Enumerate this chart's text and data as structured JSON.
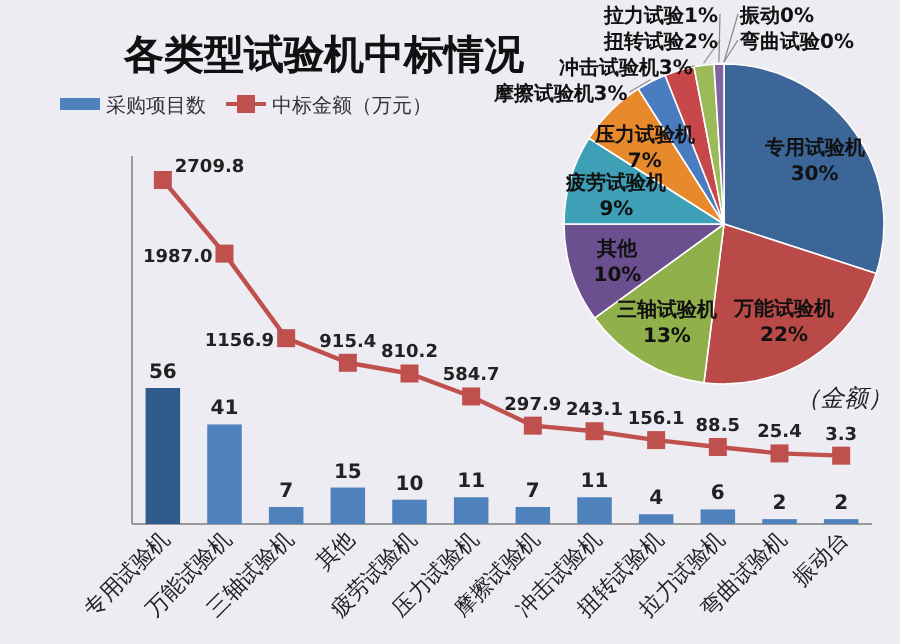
{
  "chart_data": [
    {
      "type": "bar",
      "title": "各类型试验机中标情况",
      "legend": "top left",
      "marker": "square",
      "data_labels": true,
      "categories": [
        "专用试验机",
        "万能试验机",
        "三轴试验机",
        "其他",
        "疲劳试验机",
        "压力试验机",
        "摩擦试验机",
        "冲击试验机",
        "扭转试验机",
        "拉力试验机",
        "弯曲试验机",
        "振动台"
      ],
      "series": [
        {
          "name": "采购项目数",
          "color": "#4f81bd",
          "colors": [
            "#2f5a8c",
            "#4f81bd",
            "#4f81bd",
            "#4f81bd",
            "#4f81bd",
            "#4f81bd",
            "#4f81bd",
            "#4f81bd",
            "#4f81bd",
            "#4f81bd",
            "#4f81bd",
            "#4f81bd"
          ],
          "values": [
            56,
            41,
            7,
            15,
            10,
            11,
            7,
            11,
            4,
            6,
            2,
            2
          ]
        },
        {
          "name": "中标金额（万元）",
          "type": "line",
          "axis": "y2",
          "color": "#c0504d",
          "values": [
            2709.8,
            1987.0,
            1156.9,
            915.4,
            810.2,
            584.7,
            297.9,
            243.1,
            156.1,
            88.5,
            25.4,
            3.3
          ],
          "value_labels": [
            "2709.8",
            "1987.0",
            "1156.9",
            "915.4",
            "810.2",
            "584.7",
            "297.9",
            "243.1",
            "156.1",
            "88.5",
            "25.4",
            "3.3"
          ]
        }
      ]
    },
    {
      "type": "pie",
      "annotations": [
        "（金额）"
      ],
      "categories": [
        "专用试验机",
        "万能试验机",
        "三轴试验机",
        "其他",
        "疲劳试验机",
        "压力试验机",
        "摩擦试验机",
        "冲击试验机",
        "扭转试验",
        "拉力试验",
        "弯曲试验",
        "振动"
      ],
      "values": [
        30,
        22,
        13,
        10,
        9,
        7,
        3,
        3,
        2,
        1,
        0,
        0
      ],
      "value_labels": [
        "30%",
        "22%",
        "13%",
        "10%",
        "9%",
        "7%",
        "3%",
        "3%",
        "2%",
        "1%",
        "0%",
        "0%"
      ],
      "colors": [
        "#3c6698",
        "#b94a48",
        "#8fb04a",
        "#6b4f8e",
        "#3ea0b6",
        "#e8892c",
        "#4a7cc0",
        "#c8474a",
        "#9bbb59",
        "#8064a2",
        "#4bacc6",
        "#f79646"
      ]
    }
  ]
}
